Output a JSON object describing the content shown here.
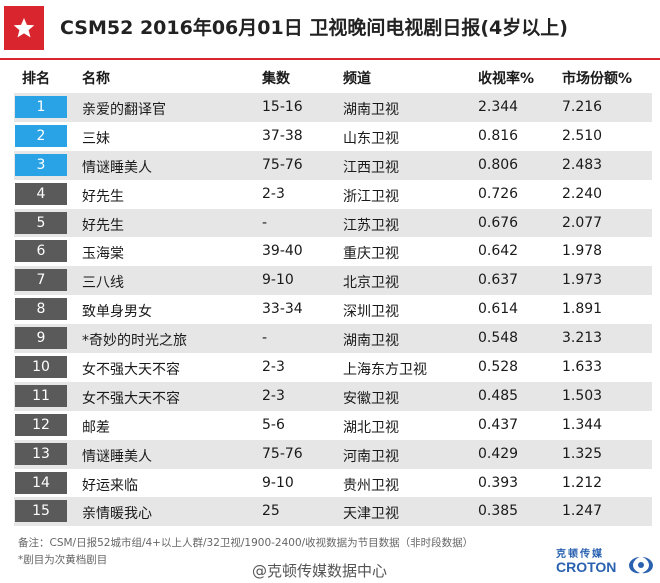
{
  "title": "CSM52  2016年06月01日  卫视晚间电视剧日报(4岁以上)",
  "columns": [
    "排名",
    "名称",
    "集数",
    "频道",
    "收视率%",
    "市场份额%"
  ],
  "rows": [
    {
      "rank": "1",
      "name": "亲爱的翻译官",
      "episodes": "15-16",
      "channel": "湖南卫视",
      "rating": "2.344",
      "share": "7.216"
    },
    {
      "rank": "2",
      "name": "三妹",
      "episodes": "37-38",
      "channel": "山东卫视",
      "rating": "0.816",
      "share": "2.510"
    },
    {
      "rank": "3",
      "name": "情谜睡美人",
      "episodes": "75-76",
      "channel": "江西卫视",
      "rating": "0.806",
      "share": "2.483"
    },
    {
      "rank": "4",
      "name": "好先生",
      "episodes": "2-3",
      "channel": "浙江卫视",
      "rating": "0.726",
      "share": "2.240"
    },
    {
      "rank": "5",
      "name": "好先生",
      "episodes": "-",
      "channel": "江苏卫视",
      "rating": "0.676",
      "share": "2.077"
    },
    {
      "rank": "6",
      "name": "玉海棠",
      "episodes": "39-40",
      "channel": "重庆卫视",
      "rating": "0.642",
      "share": "1.978"
    },
    {
      "rank": "7",
      "name": "三八线",
      "episodes": "9-10",
      "channel": "北京卫视",
      "rating": "0.637",
      "share": "1.973"
    },
    {
      "rank": "8",
      "name": "致单身男女",
      "episodes": "33-34",
      "channel": "深圳卫视",
      "rating": "0.614",
      "share": "1.891"
    },
    {
      "rank": "9",
      "name": "*奇妙的时光之旅",
      "episodes": "-",
      "channel": "湖南卫视",
      "rating": "0.548",
      "share": "3.213"
    },
    {
      "rank": "10",
      "name": "女不强大天不容",
      "episodes": "2-3",
      "channel": "上海东方卫视",
      "rating": "0.528",
      "share": "1.633"
    },
    {
      "rank": "11",
      "name": "女不强大天不容",
      "episodes": "2-3",
      "channel": "安徽卫视",
      "rating": "0.485",
      "share": "1.503"
    },
    {
      "rank": "12",
      "name": "邮差",
      "episodes": "5-6",
      "channel": "湖北卫视",
      "rating": "0.437",
      "share": "1.344"
    },
    {
      "rank": "13",
      "name": "情谜睡美人",
      "episodes": "75-76",
      "channel": "河南卫视",
      "rating": "0.429",
      "share": "1.325"
    },
    {
      "rank": "14",
      "name": "好运来临",
      "episodes": "9-10",
      "channel": "贵州卫视",
      "rating": "0.393",
      "share": "1.212"
    },
    {
      "rank": "15",
      "name": "亲情暖我心",
      "episodes": "25",
      "channel": "天津卫视",
      "rating": "0.385",
      "share": "1.247"
    }
  ],
  "notes": [
    "备注：CSM/日报52城市组/4+以上人群/32卫视/1900-2400/收视数据为节目数据（非时段数据）",
    "*剧目为次黄档剧目"
  ],
  "watermark": "@克顿传媒数据中心",
  "brand": {
    "cn": "克顿传媒",
    "en": "CROTON"
  },
  "colors": {
    "accent_red": "#d9262e",
    "rank_top": "#29a3e6",
    "rank_rest": "#5a5a5a",
    "brand_blue": "#2a62b0"
  },
  "icons": {
    "header": "star-icon",
    "brand": "croton-logo-icon"
  }
}
